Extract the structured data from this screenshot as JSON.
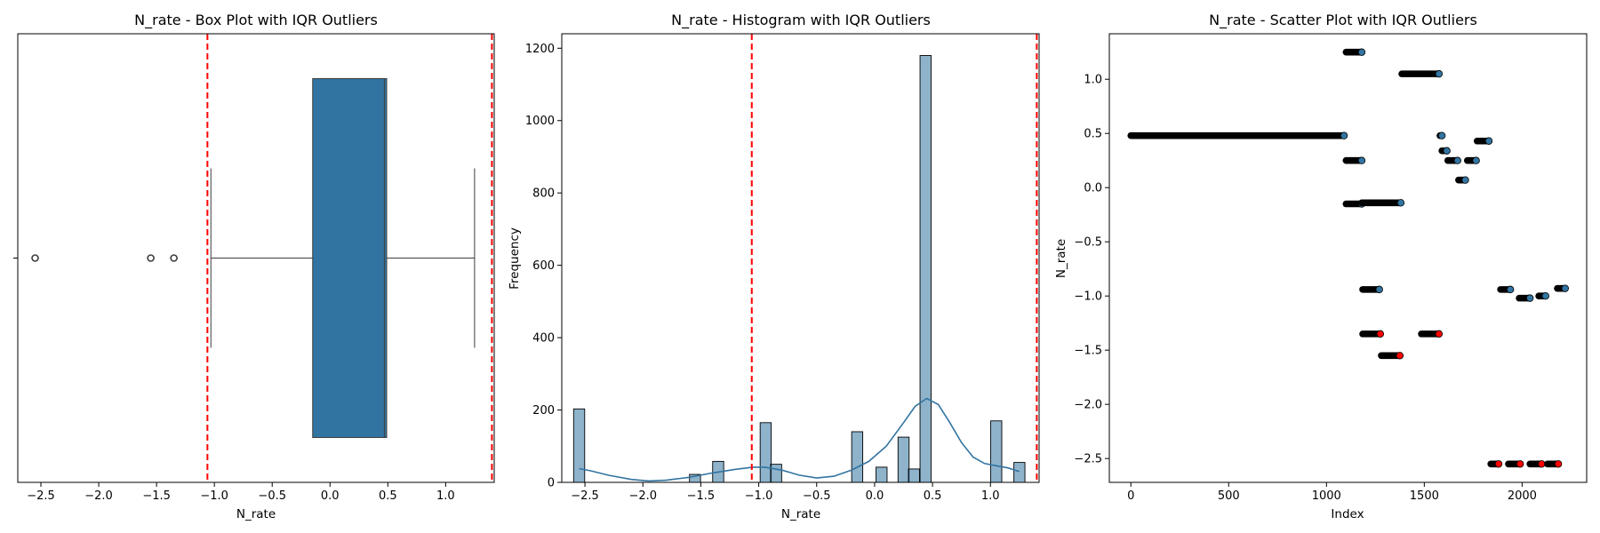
{
  "chart_data": [
    {
      "type": "box",
      "title": "N_rate - Box Plot with IQR Outliers",
      "xlabel": "N_rate",
      "xlim": [
        -2.7,
        1.42
      ],
      "xticks": [
        -2.5,
        -2.0,
        -1.5,
        -1.0,
        -0.5,
        0.0,
        0.5,
        1.0
      ],
      "box": {
        "q1": -0.15,
        "median": 0.47,
        "q3": 0.49,
        "whisker_low": -1.03,
        "whisker_high": 1.25
      },
      "outliers": [
        -2.55,
        -1.55,
        -1.35
      ],
      "outlier_bounds": [
        -1.06,
        1.4
      ],
      "color": "#3274a1"
    },
    {
      "type": "bar",
      "title": "N_rate - Histogram with IQR Outliers",
      "xlabel": "N_rate",
      "ylabel": "Frequency",
      "xlim": [
        -2.7,
        1.42
      ],
      "ylim": [
        0,
        1240
      ],
      "xticks": [
        -2.5,
        -2.0,
        -1.5,
        -1.0,
        -0.5,
        0.0,
        0.5,
        1.0
      ],
      "yticks": [
        0,
        200,
        400,
        600,
        800,
        1000,
        1200
      ],
      "bin_width": 0.0955,
      "bins": [
        {
          "x": -2.55,
          "count": 203
        },
        {
          "x": -1.55,
          "count": 22
        },
        {
          "x": -1.35,
          "count": 58
        },
        {
          "x": -0.94,
          "count": 165
        },
        {
          "x": -0.85,
          "count": 50
        },
        {
          "x": -0.15,
          "count": 140
        },
        {
          "x": 0.06,
          "count": 42
        },
        {
          "x": 0.25,
          "count": 125
        },
        {
          "x": 0.34,
          "count": 37
        },
        {
          "x": 0.44,
          "count": 1180
        },
        {
          "x": 1.05,
          "count": 170
        },
        {
          "x": 1.25,
          "count": 55
        }
      ],
      "kde": [
        [
          -2.55,
          38
        ],
        [
          -2.45,
          32
        ],
        [
          -2.3,
          20
        ],
        [
          -2.1,
          8
        ],
        [
          -1.95,
          4
        ],
        [
          -1.8,
          6
        ],
        [
          -1.6,
          14
        ],
        [
          -1.4,
          26
        ],
        [
          -1.2,
          36
        ],
        [
          -1.05,
          42
        ],
        [
          -0.95,
          42
        ],
        [
          -0.8,
          34
        ],
        [
          -0.65,
          20
        ],
        [
          -0.5,
          12
        ],
        [
          -0.35,
          17
        ],
        [
          -0.2,
          34
        ],
        [
          -0.05,
          58
        ],
        [
          0.1,
          100
        ],
        [
          0.25,
          165
        ],
        [
          0.35,
          210
        ],
        [
          0.45,
          232
        ],
        [
          0.55,
          215
        ],
        [
          0.65,
          165
        ],
        [
          0.75,
          110
        ],
        [
          0.85,
          70
        ],
        [
          0.95,
          52
        ],
        [
          1.05,
          46
        ],
        [
          1.15,
          40
        ],
        [
          1.25,
          30
        ]
      ],
      "outlier_bounds": [
        -1.06,
        1.4
      ],
      "color": "#3274a1"
    },
    {
      "type": "scatter",
      "title": "N_rate - Scatter Plot with IQR Outliers",
      "xlabel": "Index",
      "ylabel": "N_rate",
      "xlim": [
        -110,
        2330
      ],
      "ylim": [
        -2.72,
        1.42
      ],
      "xticks": [
        0,
        500,
        1000,
        1500,
        2000
      ],
      "yticks": [
        1.0,
        0.5,
        0.0,
        -0.5,
        -1.0,
        -1.5,
        -2.0,
        -2.5
      ],
      "segments": [
        {
          "x0": 0,
          "x1": 1090,
          "y": 0.48,
          "outlier": false
        },
        {
          "x0": 1100,
          "x1": 1180,
          "y": 1.25,
          "outlier": false
        },
        {
          "x0": 1100,
          "x1": 1180,
          "y": 0.25,
          "outlier": false
        },
        {
          "x0": 1100,
          "x1": 1180,
          "y": -0.15,
          "outlier": false
        },
        {
          "x0": 1180,
          "x1": 1380,
          "y": -0.14,
          "outlier": false
        },
        {
          "x0": 1185,
          "x1": 1270,
          "y": -0.94,
          "outlier": false
        },
        {
          "x0": 1185,
          "x1": 1275,
          "y": -1.35,
          "outlier": true
        },
        {
          "x0": 1280,
          "x1": 1375,
          "y": -1.55,
          "outlier": true
        },
        {
          "x0": 1385,
          "x1": 1575,
          "y": 1.05,
          "outlier": false
        },
        {
          "x0": 1485,
          "x1": 1575,
          "y": -1.35,
          "outlier": true
        },
        {
          "x0": 1580,
          "x1": 1590,
          "y": 0.48,
          "outlier": false
        },
        {
          "x0": 1590,
          "x1": 1615,
          "y": 0.34,
          "outlier": false
        },
        {
          "x0": 1620,
          "x1": 1670,
          "y": 0.25,
          "outlier": false
        },
        {
          "x0": 1675,
          "x1": 1710,
          "y": 0.07,
          "outlier": false
        },
        {
          "x0": 1720,
          "x1": 1765,
          "y": 0.25,
          "outlier": false
        },
        {
          "x0": 1770,
          "x1": 1830,
          "y": 0.43,
          "outlier": false
        },
        {
          "x0": 1840,
          "x1": 1880,
          "y": -2.55,
          "outlier": true
        },
        {
          "x0": 1890,
          "x1": 1940,
          "y": -0.94,
          "outlier": false
        },
        {
          "x0": 1930,
          "x1": 1990,
          "y": -2.55,
          "outlier": true
        },
        {
          "x0": 1985,
          "x1": 2040,
          "y": -1.02,
          "outlier": false
        },
        {
          "x0": 2040,
          "x1": 2100,
          "y": -2.55,
          "outlier": true
        },
        {
          "x0": 2085,
          "x1": 2120,
          "y": -1.0,
          "outlier": false
        },
        {
          "x0": 2130,
          "x1": 2185,
          "y": -2.55,
          "outlier": true
        },
        {
          "x0": 2180,
          "x1": 2220,
          "y": -0.93,
          "outlier": false
        }
      ],
      "normal_color": "#3274a1",
      "outlier_color": "#ff0000"
    }
  ],
  "colors": {
    "bound_line": "#ff0000",
    "edge": "#000000"
  }
}
